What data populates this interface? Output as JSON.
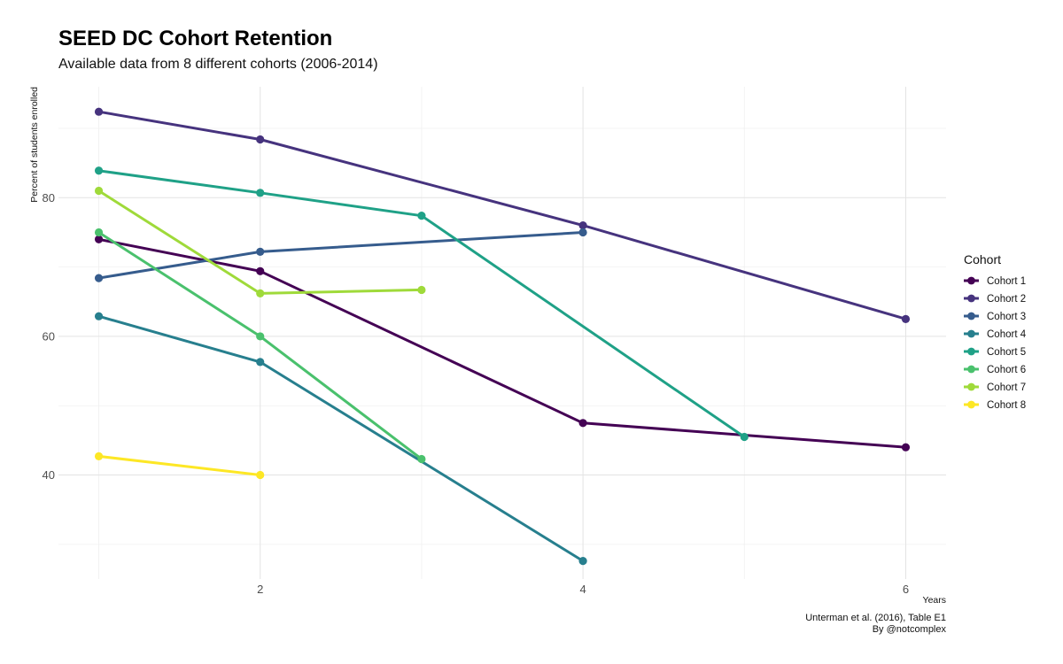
{
  "title": "SEED DC Cohort Retention",
  "subtitle": "Available data from 8 different cohorts (2006-2014)",
  "caption": {
    "line1": "Unterman et al. (2016), Table E1",
    "line2": "By @notcomplex"
  },
  "chart_data": {
    "type": "line",
    "title": "SEED DC Cohort Retention",
    "subtitle": "Available data from 8 different cohorts (2006-2014)",
    "xlabel": "Years",
    "ylabel": "Percent of students enrolled",
    "xlim": [
      0.75,
      6.25
    ],
    "ylim": [
      25,
      96
    ],
    "x_ticks": [
      2,
      4,
      6
    ],
    "y_ticks": [
      40,
      60,
      80
    ],
    "grid": true,
    "legend_title": "Cohort",
    "legend_position": "right",
    "series": [
      {
        "name": "Cohort 1",
        "color": "#440154",
        "x": [
          1,
          2,
          4,
          6
        ],
        "y": [
          74,
          69.4,
          47.5,
          44
        ]
      },
      {
        "name": "Cohort 2",
        "color": "#46337E",
        "x": [
          1,
          2,
          4,
          6
        ],
        "y": [
          92.4,
          88.4,
          76,
          62.5
        ]
      },
      {
        "name": "Cohort 3",
        "color": "#365C8D",
        "x": [
          1,
          2,
          4
        ],
        "y": [
          68.4,
          72.2,
          75
        ]
      },
      {
        "name": "Cohort 4",
        "color": "#277F8E",
        "x": [
          1,
          2,
          4
        ],
        "y": [
          62.9,
          56.3,
          27.6
        ]
      },
      {
        "name": "Cohort 5",
        "color": "#1FA187",
        "x": [
          1,
          2,
          3,
          5
        ],
        "y": [
          83.9,
          80.7,
          77.4,
          45.5
        ]
      },
      {
        "name": "Cohort 6",
        "color": "#4AC16D",
        "x": [
          1,
          2,
          3
        ],
        "y": [
          75,
          60,
          42.3
        ]
      },
      {
        "name": "Cohort 7",
        "color": "#9FDA3A",
        "x": [
          1,
          2,
          3
        ],
        "y": [
          81,
          66.2,
          66.7
        ]
      },
      {
        "name": "Cohort 8",
        "color": "#FDE725",
        "x": [
          1,
          2
        ],
        "y": [
          42.7,
          40
        ]
      }
    ]
  }
}
